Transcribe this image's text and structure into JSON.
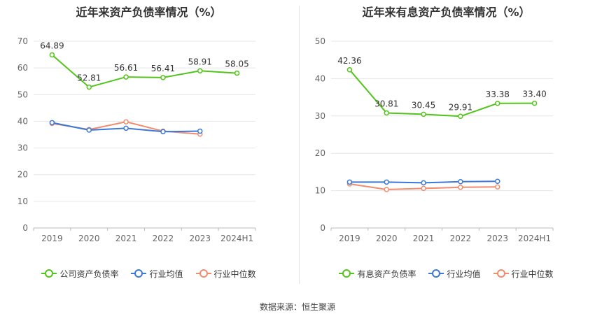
{
  "source": "数据来源：恒生聚源",
  "chart_data": [
    {
      "type": "line",
      "title": "近年来资产负债率情况（%）",
      "categories": [
        "2019",
        "2020",
        "2021",
        "2022",
        "2023",
        "2024H1"
      ],
      "ylim": [
        0,
        70
      ],
      "yticks": [
        0,
        10,
        20,
        30,
        40,
        50,
        60,
        70
      ],
      "grid": true,
      "legend_position": "bottom",
      "series": [
        {
          "name": "公司资产负债率",
          "color": "#52c41a",
          "values": [
            64.89,
            52.81,
            56.61,
            56.41,
            58.91,
            58.05
          ],
          "labels": [
            "64.89",
            "52.81",
            "56.61",
            "56.41",
            "58.91",
            "58.05"
          ]
        },
        {
          "name": "行业均值",
          "color": "#3c78d8",
          "values": [
            39.5,
            36.7,
            37.4,
            36.1,
            36.3,
            null
          ]
        },
        {
          "name": "行业中位数",
          "color": "#f08c6c",
          "values": [
            39.2,
            36.9,
            39.8,
            36.3,
            35.2,
            null
          ]
        }
      ]
    },
    {
      "type": "line",
      "title": "近年来有息资产负债率情况（%）",
      "categories": [
        "2019",
        "2020",
        "2021",
        "2022",
        "2023",
        "2024H1"
      ],
      "ylim": [
        0,
        50
      ],
      "yticks": [
        0,
        10,
        20,
        30,
        40,
        50
      ],
      "grid": true,
      "legend_position": "bottom",
      "series": [
        {
          "name": "有息资产负债率",
          "color": "#52c41a",
          "values": [
            42.36,
            30.81,
            30.45,
            29.91,
            33.38,
            33.4
          ],
          "labels": [
            "42.36",
            "30.81",
            "30.45",
            "29.91",
            "33.38",
            "33.40"
          ]
        },
        {
          "name": "行业均值",
          "color": "#3c78d8",
          "values": [
            12.3,
            12.3,
            12.1,
            12.4,
            12.5,
            null
          ]
        },
        {
          "name": "行业中位数",
          "color": "#f08c6c",
          "values": [
            11.8,
            10.3,
            10.6,
            10.9,
            11.0,
            null
          ]
        }
      ]
    }
  ]
}
